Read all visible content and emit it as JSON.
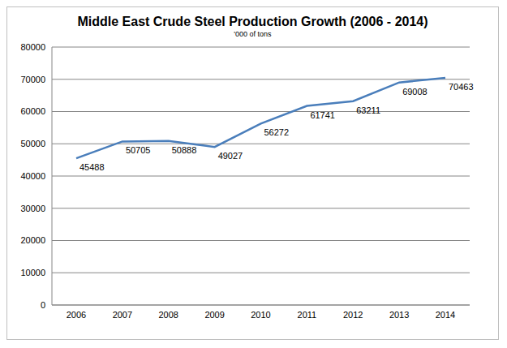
{
  "chart_data": {
    "type": "line",
    "title": "Middle East Crude Steel Production Growth (2006 - 2014)",
    "subtitle": "'000 of tons",
    "categories": [
      "2006",
      "2007",
      "2008",
      "2009",
      "2010",
      "2011",
      "2012",
      "2013",
      "2014"
    ],
    "values": [
      45488,
      50705,
      50888,
      49027,
      56272,
      61741,
      63211,
      69008,
      70463
    ],
    "color": "#4a7ebb",
    "ylim": [
      0,
      80000
    ],
    "yticks": [
      0,
      10000,
      20000,
      30000,
      40000,
      50000,
      60000,
      70000,
      80000
    ],
    "grid": true,
    "data_labels": true
  }
}
